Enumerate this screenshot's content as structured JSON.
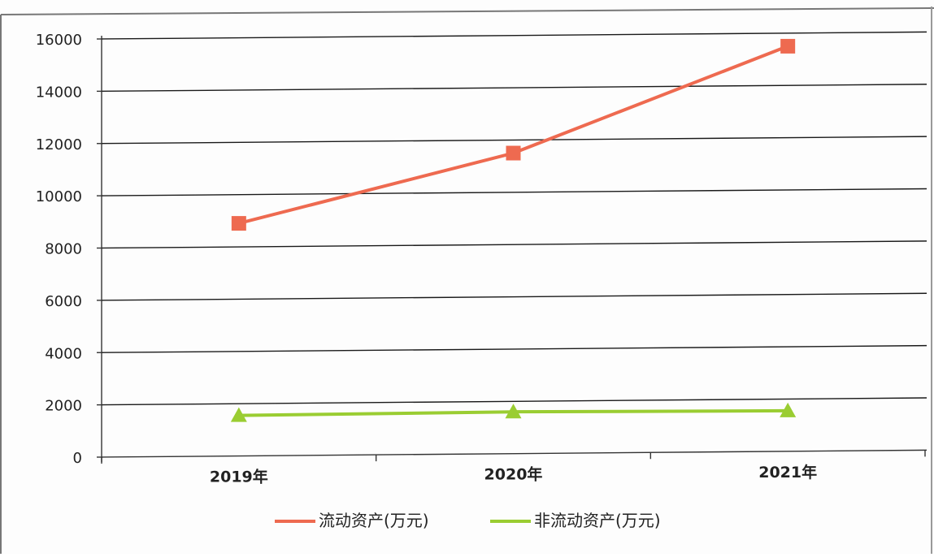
{
  "chart_data": {
    "type": "line",
    "categories": [
      "2019年",
      "2020年",
      "2021年"
    ],
    "ylim": [
      0,
      16000
    ],
    "yticks": [
      "0",
      "2000",
      "4000",
      "6000",
      "8000",
      "10000",
      "12000",
      "14000",
      "16000"
    ],
    "grid": true,
    "legend_placement": "bottom",
    "series": [
      {
        "name": "流动资产(万元)",
        "values": [
          8900,
          11500,
          15500
        ],
        "color": "#ee6a50",
        "marker": "square"
      },
      {
        "name": "非流动资产(万元)",
        "values": [
          1550,
          1600,
          1550
        ],
        "color": "#9acd32",
        "marker": "triangle"
      }
    ]
  }
}
